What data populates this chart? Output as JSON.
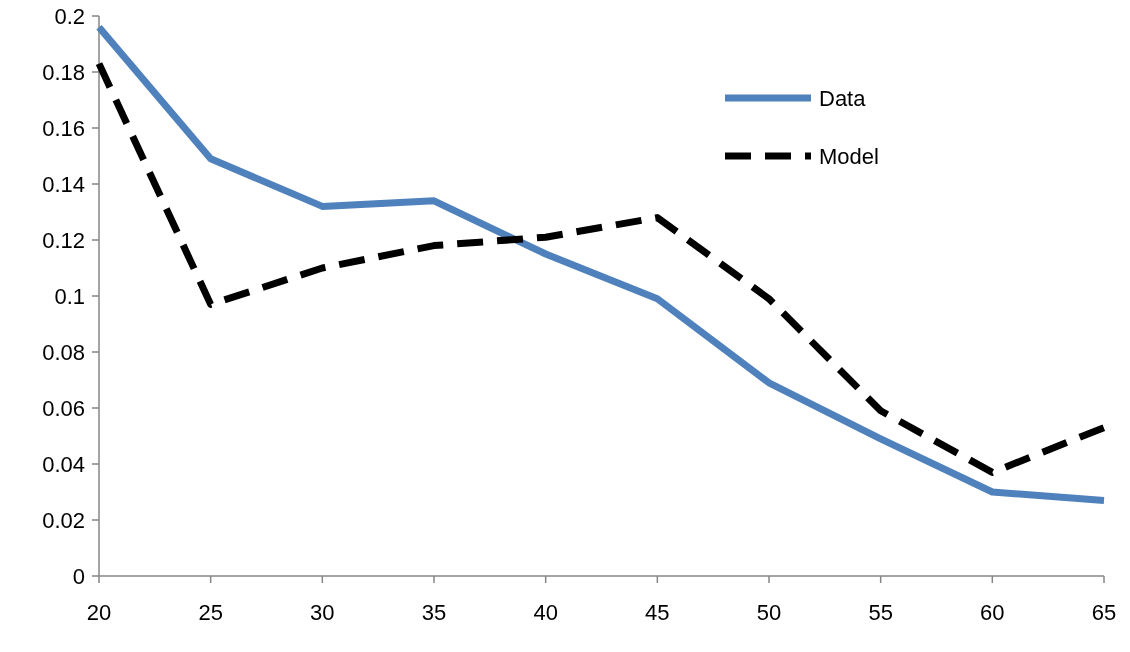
{
  "chart_data": {
    "type": "line",
    "x": [
      20,
      25,
      30,
      35,
      40,
      45,
      50,
      55,
      60,
      65
    ],
    "series": [
      {
        "name": "Data",
        "color": "#4f81bd",
        "line_style": "solid",
        "values": [
          0.196,
          0.149,
          0.132,
          0.134,
          0.115,
          0.099,
          0.069,
          0.049,
          0.03,
          0.027
        ]
      },
      {
        "name": "Model",
        "color": "#000000",
        "line_style": "dashed",
        "values": [
          0.183,
          0.097,
          0.11,
          0.118,
          0.121,
          0.128,
          0.099,
          0.059,
          0.037,
          0.053
        ]
      }
    ],
    "xlim": [
      20,
      65
    ],
    "xticks": [
      20,
      25,
      30,
      35,
      40,
      45,
      50,
      55,
      60,
      65
    ],
    "ylim": [
      0,
      0.2
    ],
    "yticks": [
      0,
      0.02,
      0.04,
      0.06,
      0.08,
      0.1,
      0.12,
      0.14,
      0.16,
      0.18,
      0.2
    ],
    "grid": false,
    "legend": "top right",
    "marker": "none"
  }
}
